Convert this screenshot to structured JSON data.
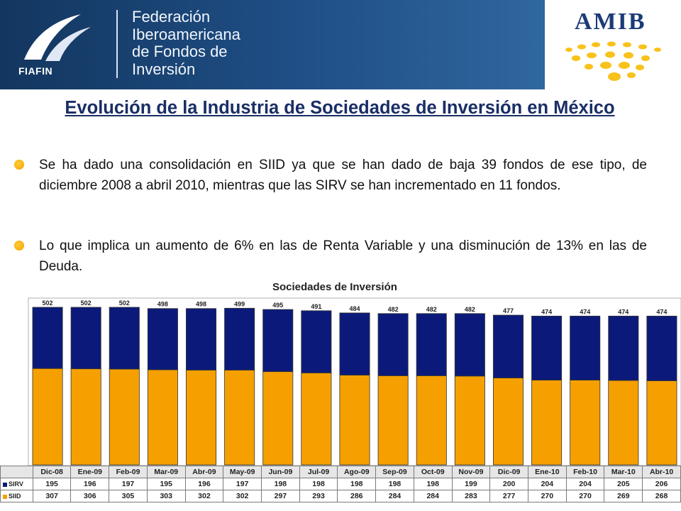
{
  "header": {
    "logo_text": "FIAFIN",
    "federation_lines": [
      "Federación",
      "Iberoamericana",
      "de Fondos de",
      "Inversión"
    ],
    "partner_logo": "AMIB"
  },
  "title": "Evolución de la Industria de Sociedades de Inversión en México",
  "bullets": [
    "Se ha dado una consolidación en SIID ya que se han dado de baja 39 fondos de ese tipo, de diciembre 2008 a abril 2010, mientras que las SIRV se han incrementado en 11 fondos.",
    "Lo que implica un aumento de 6% en las de Renta Variable y una disminución de 13% en las de Deuda."
  ],
  "chart_data": {
    "type": "bar",
    "stacked": true,
    "title": "Sociedades de Inversión",
    "categories": [
      "Dic-08",
      "Ene-09",
      "Feb-09",
      "Mar-09",
      "Abr-09",
      "May-09",
      "Jun-09",
      "Jul-09",
      "Ago-09",
      "Sep-09",
      "Oct-09",
      "Nov-09",
      "Dic-09",
      "Ene-10",
      "Feb-10",
      "Mar-10",
      "Abr-10"
    ],
    "series": [
      {
        "name": "SIID",
        "color": "#f5a000",
        "values": [
          307,
          306,
          305,
          303,
          302,
          302,
          297,
          293,
          286,
          284,
          284,
          283,
          277,
          270,
          270,
          269,
          268
        ]
      },
      {
        "name": "SIRV",
        "color": "#0b1a7a",
        "values": [
          195,
          196,
          197,
          195,
          196,
          197,
          198,
          198,
          198,
          198,
          198,
          199,
          200,
          204,
          204,
          205,
          206
        ]
      }
    ],
    "totals": [
      502,
      502,
      502,
      498,
      498,
      499,
      495,
      491,
      484,
      482,
      482,
      482,
      477,
      474,
      474,
      474,
      474
    ],
    "data_table": true,
    "grid": false
  }
}
